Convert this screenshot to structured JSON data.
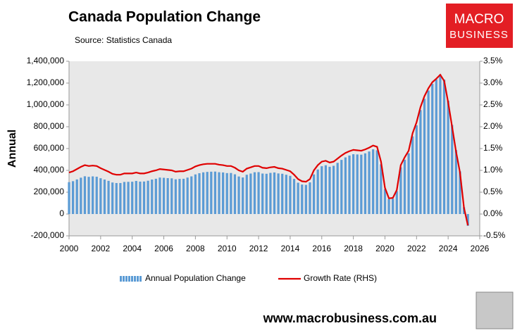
{
  "chart_data": {
    "type": "bar-line",
    "title": "Canada Population Change",
    "subtitle": "Source: Statistics Canada",
    "y_label": "Annual",
    "logo": [
      "MACRO",
      "BUSINESS"
    ],
    "website": "www.macrobusiness.com.au",
    "xlim": [
      2000,
      2026
    ],
    "xticks": [
      2000,
      2002,
      2004,
      2006,
      2008,
      2010,
      2012,
      2014,
      2016,
      2018,
      2020,
      2022,
      2024,
      2026
    ],
    "ylim": [
      -200000,
      1400000
    ],
    "yticks": [
      {
        "value": -200000,
        "label": "-200,000"
      },
      0,
      {
        "value": 200000,
        "label": "200,000"
      },
      {
        "value": 400000,
        "label": "400,000"
      },
      {
        "value": 600000,
        "label": "600,000"
      },
      {
        "value": 800000,
        "label": "800,000"
      },
      {
        "value": 1000000,
        "label": "1,000,000"
      },
      {
        "value": 1200000,
        "label": "1,200,000"
      },
      {
        "value": 1400000,
        "label": "1,400,000"
      }
    ],
    "y2lim": [
      -0.5,
      3.5
    ],
    "y2ticks": [
      {
        "value": -0.5,
        "label": "-0.5%"
      },
      {
        "value": 0,
        "label": "0.0%"
      },
      {
        "value": 0.5,
        "label": "0.5%"
      },
      {
        "value": 1,
        "label": "1.0%"
      },
      {
        "value": 1.5,
        "label": "1.5%"
      },
      {
        "value": 2,
        "label": "2.0%"
      },
      {
        "value": 2.5,
        "label": "2.5%"
      },
      {
        "value": 3,
        "label": "3.0%"
      },
      {
        "value": 3.5,
        "label": "3.5%"
      }
    ],
    "x": [
      2000,
      2000.25,
      2000.5,
      2000.75,
      2001,
      2001.25,
      2001.5,
      2001.75,
      2002,
      2002.25,
      2002.5,
      2002.75,
      2003,
      2003.25,
      2003.5,
      2003.75,
      2004,
      2004.25,
      2004.5,
      2004.75,
      2005,
      2005.25,
      2005.5,
      2005.75,
      2006,
      2006.25,
      2006.5,
      2006.75,
      2007,
      2007.25,
      2007.5,
      2007.75,
      2008,
      2008.25,
      2008.5,
      2008.75,
      2009,
      2009.25,
      2009.5,
      2009.75,
      2010,
      2010.25,
      2010.5,
      2010.75,
      2011,
      2011.25,
      2011.5,
      2011.75,
      2012,
      2012.25,
      2012.5,
      2012.75,
      2013,
      2013.25,
      2013.5,
      2013.75,
      2014,
      2014.25,
      2014.5,
      2014.75,
      2015,
      2015.25,
      2015.5,
      2015.75,
      2016,
      2016.25,
      2016.5,
      2016.75,
      2017,
      2017.25,
      2017.5,
      2017.75,
      2018,
      2018.25,
      2018.5,
      2018.75,
      2019,
      2019.25,
      2019.5,
      2019.75,
      2020,
      2020.25,
      2020.5,
      2020.75,
      2021,
      2021.25,
      2021.5,
      2021.75,
      2022,
      2022.25,
      2022.5,
      2022.75,
      2023,
      2023.25,
      2023.5,
      2023.75,
      2024,
      2024.25,
      2024.5,
      2024.75,
      2025,
      2025.25
    ],
    "series": [
      {
        "name": "Annual Population Change",
        "color": "#5b9bd5",
        "values": [
          292000,
          301000,
          317000,
          333000,
          346000,
          341000,
          345000,
          342000,
          328000,
          316000,
          304000,
          289000,
          284000,
          284000,
          294000,
          295000,
          296000,
          303000,
          297000,
          298000,
          305000,
          316000,
          323000,
          334000,
          332000,
          329000,
          327000,
          318000,
          322000,
          323000,
          334000,
          345000,
          363000,
          374000,
          382000,
          386000,
          388000,
          389000,
          383000,
          381000,
          375000,
          376000,
          364000,
          344000,
          335000,
          360000,
          371000,
          383000,
          384000,
          371000,
          369000,
          377000,
          381000,
          372000,
          369000,
          360000,
          350000,
          322000,
          287000,
          270000,
          267000,
          290000,
          363000,
          408000,
          438000,
          447000,
          433000,
          442000,
          469000,
          496000,
          519000,
          536000,
          548000,
          546000,
          544000,
          556000,
          573000,
          593000,
          584000,
          456000,
          228000,
          137000,
          141000,
          210000,
          428000,
          498000,
          557000,
          712000,
          813000,
          953000,
          1056000,
          1132000,
          1193000,
          1234000,
          1279000,
          1232000,
          1039000,
          816000,
          586000,
          391000,
          62000,
          -108000
        ]
      },
      {
        "name": "Growth Rate (RHS)",
        "color": "#e00000",
        "axis": "y2",
        "values": [
          0.95,
          0.98,
          1.03,
          1.08,
          1.12,
          1.1,
          1.11,
          1.1,
          1.05,
          1.01,
          0.97,
          0.92,
          0.9,
          0.9,
          0.93,
          0.93,
          0.93,
          0.95,
          0.93,
          0.93,
          0.95,
          0.98,
          1.0,
          1.03,
          1.02,
          1.01,
          1.0,
          0.97,
          0.98,
          0.98,
          1.01,
          1.04,
          1.09,
          1.12,
          1.14,
          1.15,
          1.15,
          1.15,
          1.13,
          1.12,
          1.1,
          1.1,
          1.06,
          1.0,
          0.97,
          1.04,
          1.07,
          1.1,
          1.1,
          1.06,
          1.05,
          1.07,
          1.08,
          1.05,
          1.04,
          1.01,
          0.98,
          0.9,
          0.8,
          0.75,
          0.74,
          0.8,
          1.0,
          1.12,
          1.2,
          1.22,
          1.18,
          1.2,
          1.27,
          1.34,
          1.4,
          1.44,
          1.47,
          1.46,
          1.45,
          1.48,
          1.52,
          1.57,
          1.54,
          1.2,
          0.6,
          0.36,
          0.37,
          0.55,
          1.12,
          1.3,
          1.45,
          1.85,
          2.1,
          2.45,
          2.7,
          2.88,
          3.02,
          3.1,
          3.19,
          3.05,
          2.56,
          2.0,
          1.43,
          0.95,
          0.15,
          -0.26
        ]
      }
    ]
  }
}
